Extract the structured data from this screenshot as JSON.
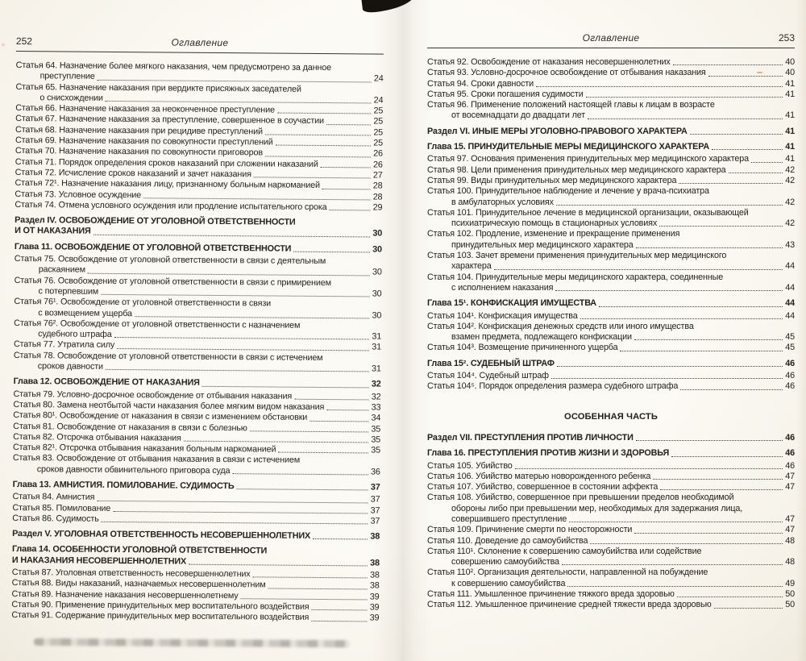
{
  "left_page": {
    "page_number": "252",
    "running_title": "Оглавление",
    "entries": [
      {
        "pre": [
          "Статья 64. Назначение более мягкого наказания, чем предусмотрено за данное"
        ],
        "text": "преступление",
        "page": "24",
        "indent": true
      },
      {
        "pre": [
          "Статья 65. Назначение наказания при вердикте присяжных заседателей"
        ],
        "text": "о снисхождении",
        "page": "24",
        "indent": true
      },
      {
        "text": "Статья 66. Назначение наказания за неоконченное преступление",
        "page": "25"
      },
      {
        "text": "Статья 67. Назначение наказания за преступление, совершенное в соучастии",
        "page": "25"
      },
      {
        "text": "Статья 68. Назначение наказания при рецидиве преступлений",
        "page": "25"
      },
      {
        "text": "Статья 69. Назначение наказания по совокупности преступлений",
        "page": "25"
      },
      {
        "text": "Статья 70. Назначение наказания по совокупности приговоров",
        "page": "26"
      },
      {
        "text": "Статья 71. Порядок определения сроков наказаний при сложении наказаний",
        "page": "26"
      },
      {
        "text": "Статья 72. Исчисление сроков наказаний и зачет наказания",
        "page": "27"
      },
      {
        "text": "Статья 72¹. Назначение наказания лицу, признанному больным наркоманией",
        "page": "28"
      },
      {
        "text": "Статья 73. Условное осуждение",
        "page": "28"
      },
      {
        "text": "Статья 74. Отмена условного осуждения или продление испытательного срока",
        "page": "29"
      },
      {
        "pre": [
          "Раздел IV. ОСВОБОЖДЕНИЕ ОТ УГОЛОВНОЙ ОТВЕТСТВЕННОСТИ"
        ],
        "text": "И ОТ НАКАЗАНИЯ",
        "page": "30",
        "bold": true,
        "gap": true
      },
      {
        "text": "Глава 11. ОСВОБОЖДЕНИЕ ОТ УГОЛОВНОЙ ОТВЕТСТВЕННОСТИ",
        "page": "30",
        "bold": true,
        "gap": true
      },
      {
        "pre": [
          "Статья 75. Освобождение от уголовной ответственности в связи с деятельным"
        ],
        "text": "раскаянием",
        "page": "30",
        "indent": true
      },
      {
        "pre": [
          "Статья 76. Освобождение от уголовной ответственности в связи с примирением"
        ],
        "text": "с потерпевшим",
        "page": "30",
        "indent": true
      },
      {
        "pre": [
          "Статья 76¹. Освобождение от уголовной ответственности в связи"
        ],
        "text": "с возмещением ущерба",
        "page": "30",
        "indent": true
      },
      {
        "pre": [
          "Статья 76². Освобождение от уголовной ответственности с назначением"
        ],
        "text": "судебного штрафа",
        "page": "31",
        "indent": true
      },
      {
        "text": "Статья 77. Утратила силу",
        "page": "31"
      },
      {
        "pre": [
          "Статья 78. Освобождение от уголовной ответственности в связи с истечением"
        ],
        "text": "сроков давности",
        "page": "31",
        "indent": true
      },
      {
        "text": "Глава 12. ОСВОБОЖДЕНИЕ ОТ НАКАЗАНИЯ",
        "page": "32",
        "bold": true,
        "gap": true
      },
      {
        "text": "Статья 79. Условно-досрочное освобождение от отбывания наказания",
        "page": "32"
      },
      {
        "text": "Статья 80. Замена неотбытой части наказания более мягким видом наказания",
        "page": "33"
      },
      {
        "text": "Статья 80¹. Освобождение от наказания в связи с изменением обстановки",
        "page": "34"
      },
      {
        "text": "Статья 81. Освобождение от наказания в связи с болезнью",
        "page": "35"
      },
      {
        "text": "Статья 82. Отсрочка отбывания наказания",
        "page": "35"
      },
      {
        "text": "Статья 82¹. Отсрочка отбывания наказания больным наркоманией",
        "page": "35"
      },
      {
        "pre": [
          "Статья 83. Освобождение от отбывания наказания в связи с истечением"
        ],
        "text": "сроков давности обвинительного приговора суда",
        "page": "36",
        "indent": true
      },
      {
        "text": "Глава 13. АМНИСТИЯ. ПОМИЛОВАНИЕ. СУДИМОСТЬ",
        "page": "37",
        "bold": true,
        "gap": true
      },
      {
        "text": "Статья 84. Амнистия",
        "page": "37"
      },
      {
        "text": "Статья 85. Помилование",
        "page": "37"
      },
      {
        "text": "Статья 86. Судимость",
        "page": "37"
      },
      {
        "text": "Раздел V. УГОЛОВНАЯ ОТВЕТСТВЕННОСТЬ НЕСОВЕРШЕННОЛЕТНИХ",
        "page": "38",
        "bold": true,
        "gap": true
      },
      {
        "pre": [
          "Глава 14. ОСОБЕННОСТИ УГОЛОВНОЙ ОТВЕТСТВЕННОСТИ"
        ],
        "text": "И НАКАЗАНИЯ НЕСОВЕРШЕННОЛЕТНИХ",
        "page": "38",
        "bold": true,
        "gap": true
      },
      {
        "text": "Статья 87. Уголовная ответственность несовершеннолетних",
        "page": "38"
      },
      {
        "text": "Статья 88. Виды наказаний, назначаемых несовершеннолетним",
        "page": "38"
      },
      {
        "text": "Статья 89. Назначение наказания несовершеннолетнему",
        "page": "39"
      },
      {
        "text": "Статья 90. Применение принудительных мер воспитательного воздействия",
        "page": "39"
      },
      {
        "text": "Статья 91. Содержание принудительных мер воспитательного воздействия",
        "page": "39"
      }
    ]
  },
  "right_page": {
    "page_number": "253",
    "running_title": "Оглавление",
    "entries": [
      {
        "text": "Статья 92. Освобождение от наказания несовершеннолетних",
        "page": "40"
      },
      {
        "text": "Статья 93. Условно-досрочное освобождение от отбывания наказания",
        "page": "40"
      },
      {
        "text": "Статья 94. Сроки давности",
        "page": "41"
      },
      {
        "text": "Статья 95. Сроки погашения судимости",
        "page": "41"
      },
      {
        "pre": [
          "Статья 96. Применение положений настоящей главы к лицам в возрасте"
        ],
        "text": "от восемнадцати до двадцати лет",
        "page": "41",
        "indent": true
      },
      {
        "text": "Раздел VI. ИНЫЕ МЕРЫ УГОЛОВНО-ПРАВОВОГО ХАРАКТЕРА",
        "page": "41",
        "bold": true,
        "gap": true
      },
      {
        "text": "Глава 15. ПРИНУДИТЕЛЬНЫЕ МЕРЫ МЕДИЦИНСКОГО ХАРАКТЕРА",
        "page": "41",
        "bold": true,
        "gap": true
      },
      {
        "text": "Статья 97. Основания применения принудительных мер медицинского характера",
        "page": "41"
      },
      {
        "text": "Статья 98. Цели применения принудительных мер медицинского характера",
        "page": "42"
      },
      {
        "text": "Статья 99. Виды принудительных мер медицинского характера",
        "page": "42"
      },
      {
        "pre": [
          "Статья 100. Принудительное наблюдение и лечение у врача-психиатра"
        ],
        "text": "в амбулаторных условиях",
        "page": "42",
        "indent": true
      },
      {
        "pre": [
          "Статья 101. Принудительное лечение в медицинской организации, оказывающей"
        ],
        "text": "психиатрическую помощь в стационарных условиях",
        "page": "42",
        "indent": true
      },
      {
        "pre": [
          "Статья 102. Продление, изменение и прекращение применения"
        ],
        "text": "принудительных мер медицинского характера",
        "page": "43",
        "indent": true
      },
      {
        "pre": [
          "Статья 103. Зачет времени применения принудительных мер медицинского"
        ],
        "text": "характера",
        "page": "44",
        "indent": true
      },
      {
        "pre": [
          "Статья 104. Принудительные меры медицинского характера, соединенные"
        ],
        "text": "с исполнением наказания",
        "page": "44",
        "indent": true
      },
      {
        "text": "Глава 15¹. КОНФИСКАЦИЯ ИМУЩЕСТВА",
        "page": "44",
        "bold": true,
        "gap": true
      },
      {
        "text": "Статья 104¹. Конфискация имущества",
        "page": "44"
      },
      {
        "pre": [
          "Статья 104². Конфискация денежных средств или иного имущества"
        ],
        "text": "взамен предмета, подлежащего конфискации",
        "page": "45",
        "indent": true
      },
      {
        "text": "Статья 104³. Возмещение причиненного ущерба",
        "page": "45"
      },
      {
        "text": "Глава 15². СУДЕБНЫЙ ШТРАФ",
        "page": "46",
        "bold": true,
        "gap": true
      },
      {
        "text": "Статья 104⁴. Судебный штраф",
        "page": "46"
      },
      {
        "text": "Статья 104⁵. Порядок определения размера судебного штрафа",
        "page": "46"
      },
      {
        "text": "ОСОБЕННАЯ ЧАСТЬ",
        "center": true
      },
      {
        "text": "Раздел VII. ПРЕСТУПЛЕНИЯ ПРОТИВ ЛИЧНОСТИ",
        "page": "46",
        "bold": true,
        "gap": true
      },
      {
        "text": "Глава 16. ПРЕСТУПЛЕНИЯ ПРОТИВ ЖИЗНИ И ЗДОРОВЬЯ",
        "page": "46",
        "bold": true,
        "gap": true
      },
      {
        "text": "Статья 105. Убийство",
        "page": "46"
      },
      {
        "text": "Статья 106. Убийство матерью новорожденного ребенка",
        "page": "47"
      },
      {
        "text": "Статья 107. Убийство, совершенное в состоянии аффекта",
        "page": "47"
      },
      {
        "pre": [
          "Статья 108. Убийство, совершенное при превышении пределов необходимой",
          "обороны либо при превышении мер, необходимых для задержания лица,"
        ],
        "text": "совершившего преступление",
        "page": "47",
        "indent": true
      },
      {
        "text": "Статья 109. Причинение смерти по неосторожности",
        "page": "47"
      },
      {
        "text": "Статья 110. Доведение до самоубийства",
        "page": "48"
      },
      {
        "pre": [
          "Статья 110¹. Склонение к совершению самоубийства или содействие"
        ],
        "text": "совершению самоубийства",
        "page": "48",
        "indent": true
      },
      {
        "pre": [
          "Статья 110². Организация деятельности, направленной на побуждение"
        ],
        "text": "к совершению самоубийства",
        "page": "49",
        "indent": true
      },
      {
        "text": "Статья 111. Умышленное причинение тяжкого вреда здоровью",
        "page": "50"
      },
      {
        "text": "Статья 112. Умышленное причинение средней тяжести вреда здоровью",
        "page": "50"
      }
    ]
  }
}
